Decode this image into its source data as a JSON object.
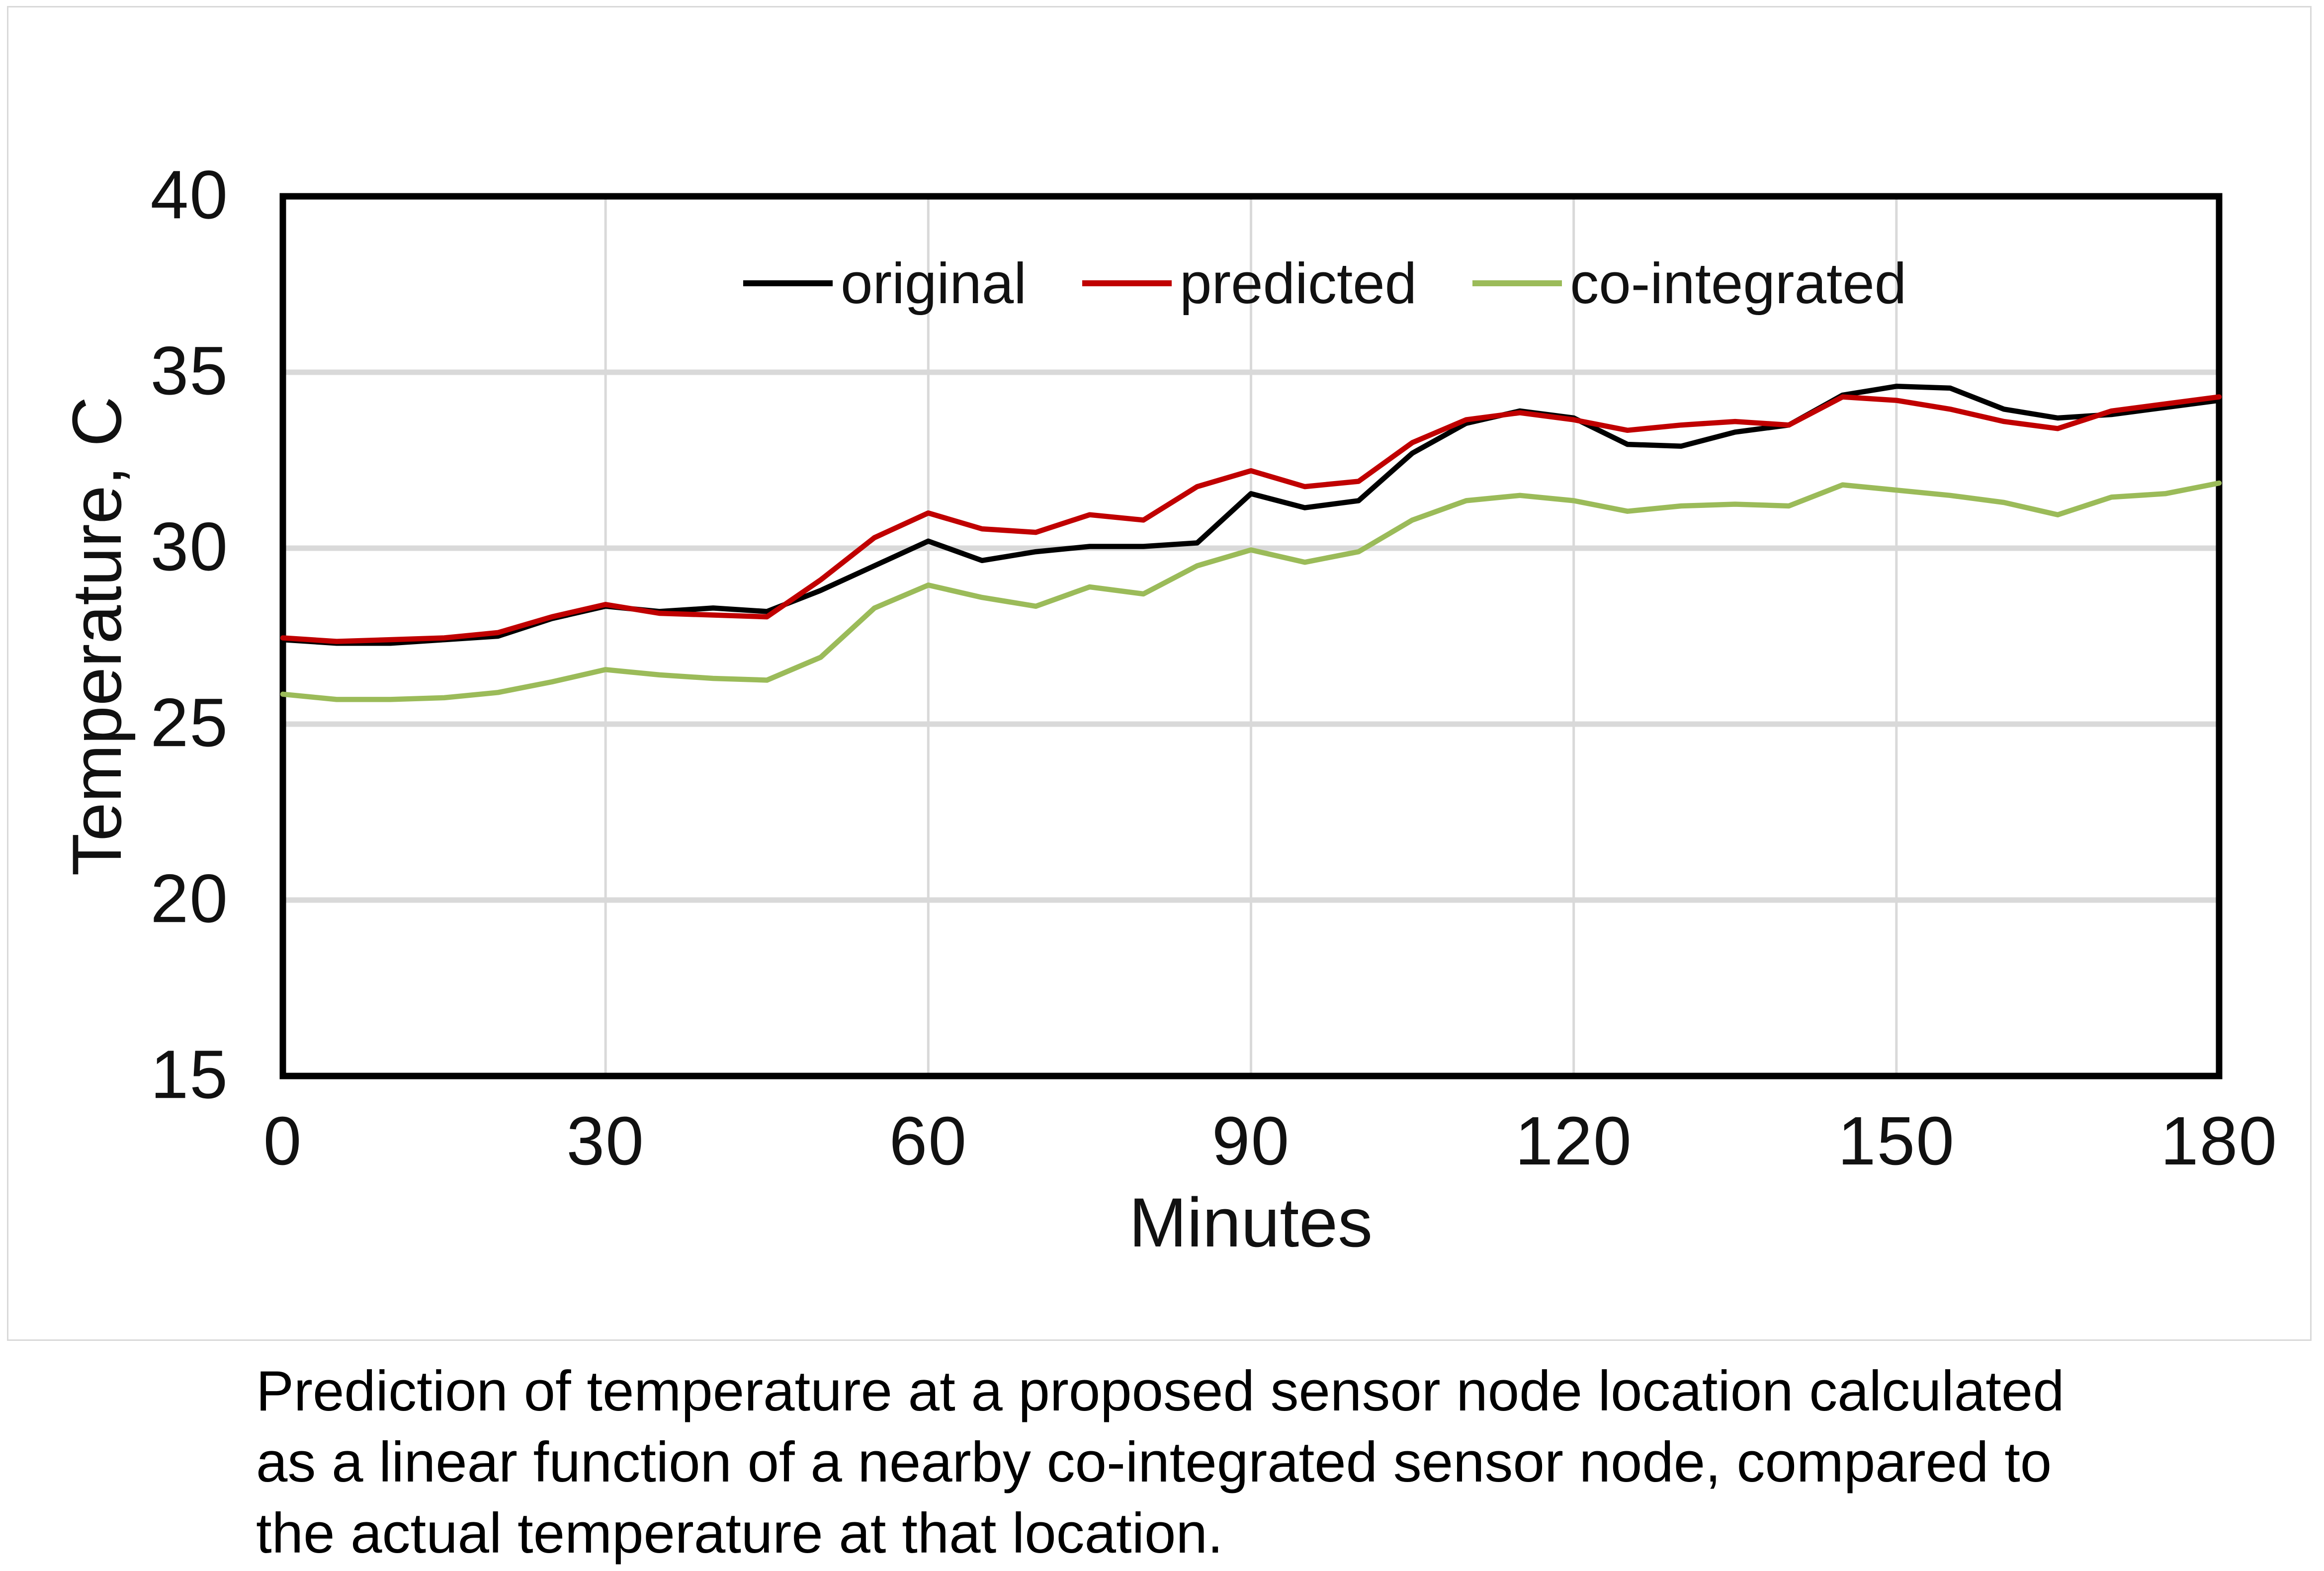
{
  "figure": {
    "caption_lines": [
      "Prediction of temperature at a proposed sensor node location calculated",
      "as a linear function of a nearby co-integrated sensor node, compared to",
      "the actual temperature at that location."
    ]
  },
  "chart": {
    "colors": {
      "original": "#000000",
      "predicted": "#C00000",
      "co_integrated": "#9BBB59",
      "gridline": "#D9D9D9",
      "plot_border": "#000000",
      "frame_border": "#D9D9D9",
      "background": "#FFFFFF"
    }
  },
  "chart_data": {
    "type": "line",
    "title": "",
    "xlabel": "Minutes",
    "ylabel": "Temperature, C",
    "xlim": [
      0,
      180
    ],
    "ylim": [
      15,
      40
    ],
    "xticks": [
      0,
      30,
      60,
      90,
      120,
      150,
      180
    ],
    "yticks": [
      40,
      35,
      30,
      25,
      20,
      15
    ],
    "grid": true,
    "legend_position": "top-center-inside",
    "x": [
      0,
      5,
      10,
      15,
      20,
      25,
      30,
      35,
      40,
      45,
      50,
      55,
      60,
      65,
      70,
      75,
      80,
      85,
      90,
      95,
      100,
      105,
      110,
      115,
      120,
      125,
      130,
      135,
      140,
      145,
      150,
      155,
      160,
      165,
      170,
      175,
      180
    ],
    "series": [
      {
        "name": "original",
        "color": "#000000",
        "values": [
          27.4,
          27.3,
          27.3,
          27.4,
          27.5,
          28.0,
          28.35,
          28.2,
          28.3,
          28.2,
          28.8,
          29.5,
          30.2,
          29.65,
          29.9,
          30.05,
          30.05,
          30.15,
          31.55,
          31.15,
          31.35,
          32.7,
          33.55,
          33.9,
          33.7,
          32.95,
          32.9,
          33.3,
          33.5,
          34.35,
          34.6,
          34.55,
          33.95,
          33.7,
          33.8,
          34.0,
          34.2
        ]
      },
      {
        "name": "predicted",
        "color": "#C00000",
        "values": [
          27.45,
          27.35,
          27.4,
          27.45,
          27.6,
          28.05,
          28.4,
          28.15,
          28.1,
          28.05,
          29.1,
          30.3,
          31.0,
          30.55,
          30.45,
          30.95,
          30.8,
          31.75,
          32.2,
          31.75,
          31.9,
          33.0,
          33.65,
          33.85,
          33.65,
          33.35,
          33.5,
          33.6,
          33.5,
          34.3,
          34.2,
          33.95,
          33.6,
          33.4,
          33.9,
          34.1,
          34.3
        ]
      },
      {
        "name": "co-integrated",
        "color": "#9BBB59",
        "values": [
          25.85,
          25.7,
          25.7,
          25.75,
          25.9,
          26.2,
          26.55,
          26.4,
          26.3,
          26.25,
          26.9,
          28.3,
          28.95,
          28.6,
          28.35,
          28.9,
          28.7,
          29.5,
          29.95,
          29.6,
          29.9,
          30.8,
          31.35,
          31.5,
          31.35,
          31.05,
          31.2,
          31.25,
          31.2,
          31.8,
          31.65,
          31.5,
          31.3,
          30.95,
          31.45,
          31.55,
          31.85
        ]
      }
    ]
  }
}
